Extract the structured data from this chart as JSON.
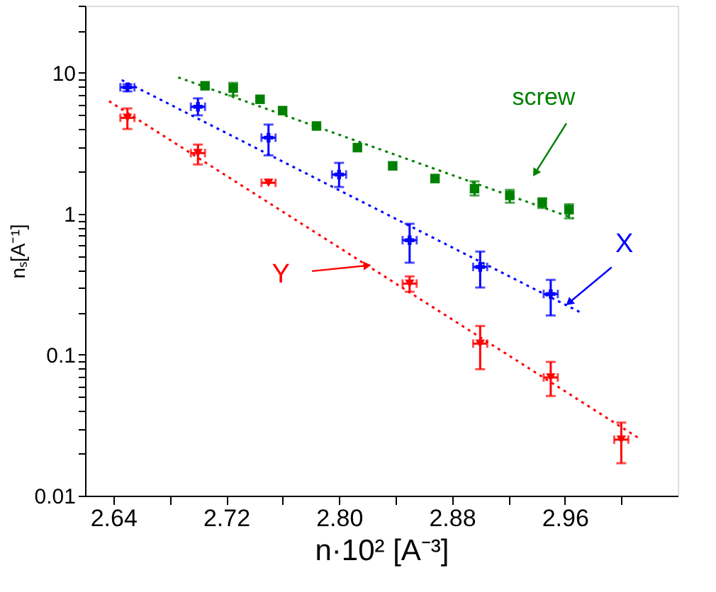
{
  "chart_data": {
    "type": "scatter",
    "xlabel": "n·10² [A⁻³]",
    "ylabel": "nₛ[A⁻¹]",
    "log": "y",
    "grid": false,
    "legend": false,
    "xlim": [
      2.62,
      3.04
    ],
    "ylim": [
      0.01,
      30
    ],
    "xticks": [
      2.64,
      {
        "value": 2.68,
        "label": null
      },
      2.72,
      {
        "value": 2.76,
        "label": null
      },
      {
        "value": 2.8,
        "label": "2.80"
      },
      {
        "value": 2.84,
        "label": null
      },
      2.88,
      {
        "value": 2.92,
        "label": null
      },
      2.96,
      {
        "value": 3.0,
        "label": null
      }
    ],
    "yticks": [
      0.01,
      {
        "value": 0.02,
        "label": null
      },
      {
        "value": 0.03,
        "label": null
      },
      {
        "value": 0.04,
        "label": null
      },
      {
        "value": 0.05,
        "label": null
      },
      {
        "value": 0.06,
        "label": null
      },
      {
        "value": 0.07,
        "label": null
      },
      {
        "value": 0.08,
        "label": null
      },
      {
        "value": 0.09,
        "label": null
      },
      0.1,
      {
        "value": 0.2,
        "label": null
      },
      {
        "value": 0.3,
        "label": null
      },
      {
        "value": 0.4,
        "label": null
      },
      {
        "value": 0.5,
        "label": null
      },
      {
        "value": 0.6,
        "label": null
      },
      {
        "value": 0.7,
        "label": null
      },
      {
        "value": 0.8,
        "label": null
      },
      {
        "value": 0.9,
        "label": null
      },
      1,
      {
        "value": 2,
        "label": null
      },
      {
        "value": 3,
        "label": null
      },
      {
        "value": 4,
        "label": null
      },
      {
        "value": 5,
        "label": null
      },
      {
        "value": 6,
        "label": null
      },
      {
        "value": 7,
        "label": null
      },
      {
        "value": 8,
        "label": null
      },
      {
        "value": 9,
        "label": null
      },
      10,
      {
        "value": 20,
        "label": null
      },
      {
        "value": 30,
        "label": null
      }
    ],
    "series": [
      {
        "type": "scatter",
        "color": "#008000",
        "marker": "square",
        "x": [
          2.705,
          2.725,
          2.744,
          2.76,
          2.784,
          2.813,
          2.838,
          2.868,
          2.896,
          2.921,
          2.944,
          2.963
        ],
        "values": [
          8.1,
          7.8,
          6.5,
          5.4,
          4.2,
          2.95,
          2.19,
          1.78,
          1.51,
          1.35,
          1.2,
          1.07
        ],
        "errors": [
          null,
          [
            6.9,
            8.5
          ],
          null,
          null,
          null,
          null,
          null,
          null,
          [
            1.35,
            1.7
          ],
          [
            1.2,
            1.48
          ],
          [
            1.1,
            1.29
          ],
          [
            0.93,
            1.17
          ]
        ]
      },
      {
        "type": "scatter",
        "color": "#0000ff",
        "marker": "cross",
        "x": [
          2.65,
          2.7,
          2.75,
          2.8,
          2.85,
          2.9,
          2.95
        ],
        "values": [
          7.9,
          5.75,
          3.47,
          1.9,
          0.65,
          0.42,
          0.27
        ],
        "errors": [
          [
            7.4,
            8.3
          ],
          [
            5.0,
            6.6
          ],
          [
            2.6,
            4.3
          ],
          [
            1.55,
            2.3
          ],
          [
            0.45,
            0.85
          ],
          [
            0.3,
            0.54
          ],
          [
            0.19,
            0.34
          ]
        ],
        "xerrors": [
          0.005,
          0.005,
          0.005,
          0.005,
          0.005,
          0.005,
          0.005
        ]
      },
      {
        "type": "scatter",
        "color": "#ff0000",
        "marker": "triangle",
        "x": [
          2.65,
          2.7,
          2.75,
          2.85,
          2.9,
          2.95,
          3.0
        ],
        "values": [
          4.8,
          2.7,
          1.66,
          0.32,
          0.12,
          0.069,
          0.025
        ],
        "errors": [
          [
            4.0,
            5.6
          ],
          [
            2.24,
            3.1
          ],
          null,
          [
            0.28,
            0.36
          ],
          [
            0.079,
            0.16
          ],
          [
            0.051,
            0.089
          ],
          [
            0.017,
            0.033
          ]
        ],
        "xerrors": [
          0.005,
          0.005,
          0.005,
          0.005,
          0.005,
          0.005,
          0.005
        ]
      },
      {
        "type": "line",
        "color": "#008000",
        "line_style": "dotted",
        "x": [
          2.686,
          2.966
        ],
        "values": [
          9.3,
          0.93
        ]
      },
      {
        "type": "line",
        "color": "#0000ff",
        "line_style": "dotted",
        "x": [
          2.646,
          2.971
        ],
        "values": [
          8.9,
          0.2
        ]
      },
      {
        "type": "line",
        "color": "#ff0000",
        "line_style": "dotted",
        "x": [
          2.637,
          3.014
        ],
        "values": [
          6.3,
          0.025
        ]
      }
    ],
    "annotations": [
      {
        "text": "screw",
        "x": 2.939,
        "y": 1.95
      },
      {
        "text": "X",
        "x": 2.963,
        "y": 0.234
      },
      {
        "text": "Y",
        "x": 2.82,
        "y": 0.43
      }
    ]
  }
}
